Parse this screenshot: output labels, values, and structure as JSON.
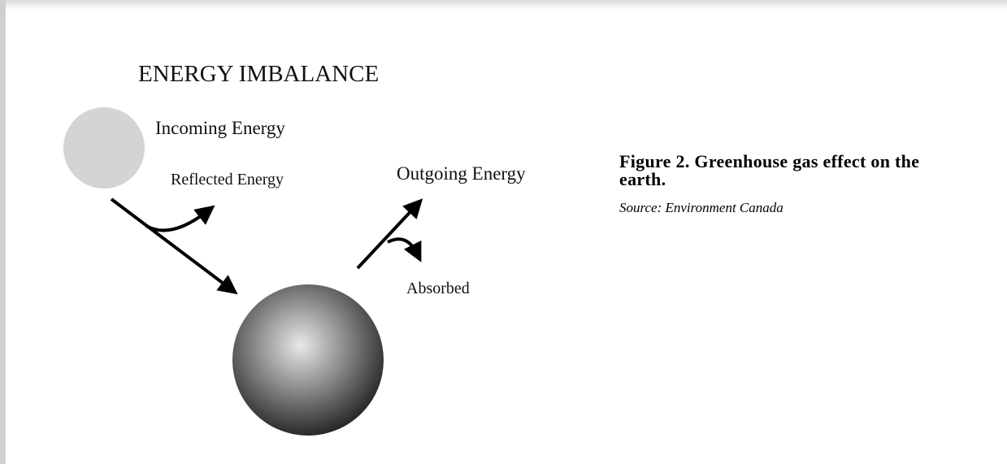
{
  "diagram": {
    "title": "ENERGY IMBALANCE",
    "labels": {
      "incoming": "Incoming Energy",
      "reflected": "Reflected Energy",
      "outgoing": "Outgoing Energy",
      "absorbed": "Absorbed"
    }
  },
  "caption": {
    "title": "Figure 2. Greenhouse gas effect on the earth.",
    "source": "Source: Environment Canada"
  }
}
